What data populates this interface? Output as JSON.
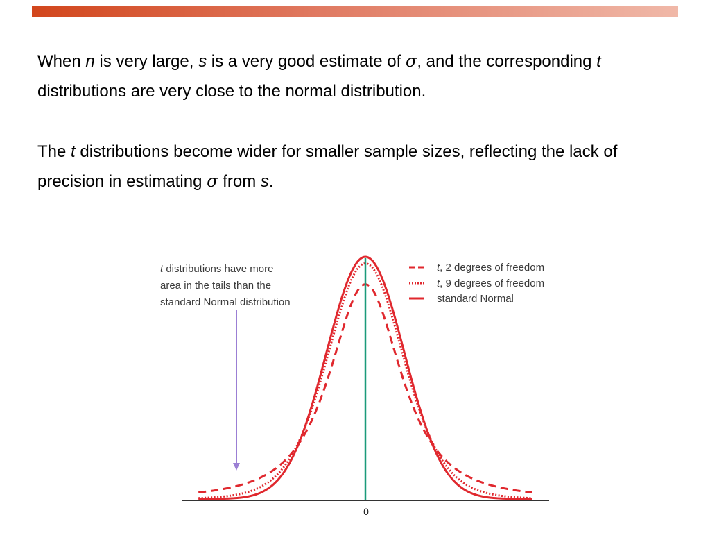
{
  "header": {
    "accent_color": "#d2461c"
  },
  "paragraph1": {
    "s1": "When ",
    "n": "n",
    "s2": " is very large, ",
    "s": "s",
    "s3": " is a very good estimate of ",
    "sigma": "σ",
    "s4": ", and the corresponding ",
    "t": "t",
    "s5": " distributions are very close to the normal distribution."
  },
  "paragraph2": {
    "s1": "The ",
    "t": "t",
    "s2": " distributions become wider for smaller sample sizes, reflecting the lack of precision in estimating ",
    "sigma": "σ",
    "s3": " from ",
    "s": "s",
    "s4": "."
  },
  "figure": {
    "annotation": {
      "t": "t",
      "line1_rest": " distributions have more",
      "line2": "area in the tails than the",
      "line3": "standard Normal distribution"
    },
    "legend": [
      {
        "prefix": "t",
        "label": ", 2 degrees of freedom",
        "style": "dashed"
      },
      {
        "prefix": "t",
        "label": ", 9 degrees of freedom",
        "style": "dotted"
      },
      {
        "prefix": "",
        "label": "standard Normal",
        "style": "solid"
      }
    ],
    "x_tick_label": "0",
    "colors": {
      "curve": "#e0282e",
      "center_line": "#1a9a7a",
      "arrow": "#9b7fd4",
      "axis": "#333333"
    },
    "curves": [
      {
        "name": "t2",
        "df": 2
      },
      {
        "name": "t9",
        "df": 9
      },
      {
        "name": "normal",
        "df": null
      }
    ]
  }
}
